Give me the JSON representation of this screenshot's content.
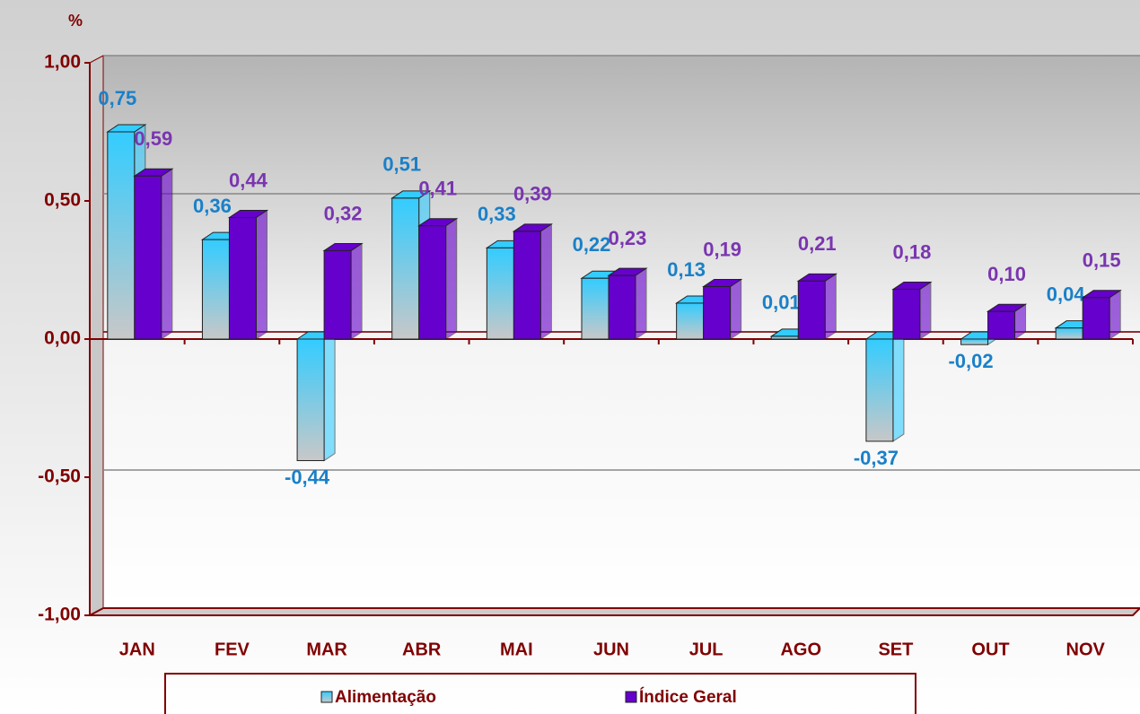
{
  "chart_data": {
    "type": "bar3d",
    "y_axis_label": "%",
    "categories": [
      "JAN",
      "FEV",
      "MAR",
      "ABR",
      "MAI",
      "JUN",
      "JUL",
      "AGO",
      "SET",
      "OUT",
      "NOV"
    ],
    "series": [
      {
        "name": "Alimentação",
        "color": "#33ccff",
        "values": [
          0.75,
          0.36,
          -0.44,
          0.51,
          0.33,
          0.22,
          0.13,
          0.01,
          -0.37,
          -0.02,
          0.04
        ],
        "value_labels": [
          "0,75",
          "0,36",
          "-0,44",
          "0,51",
          "0,33",
          "0,22",
          "0,13",
          "0,01",
          "-0,37",
          "-0,02",
          "0,04"
        ]
      },
      {
        "name": "Índice Geral",
        "color": "#6600cc",
        "values": [
          0.59,
          0.44,
          0.32,
          0.41,
          0.39,
          0.23,
          0.19,
          0.21,
          0.18,
          0.1,
          0.15
        ],
        "value_labels": [
          "0,59",
          "0,44",
          "0,32",
          "0,41",
          "0,39",
          "0,23",
          "0,19",
          "0,21",
          "0,18",
          "0,10",
          "0,15"
        ]
      }
    ],
    "ylim": [
      -1,
      1
    ],
    "yticks": [
      {
        "value": -1,
        "label": "-1,00"
      },
      {
        "value": -0.5,
        "label": "-0,50"
      },
      {
        "value": 0,
        "label": "0,00"
      },
      {
        "value": 0.5,
        "label": "0,50"
      },
      {
        "value": 1,
        "label": "1,00"
      }
    ],
    "grid": true,
    "legend": "bottom"
  }
}
